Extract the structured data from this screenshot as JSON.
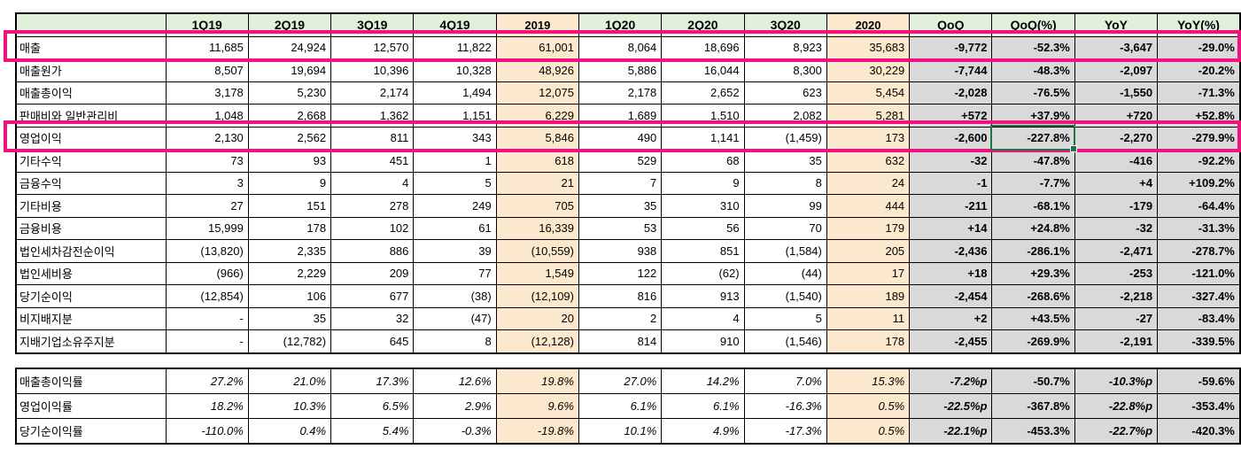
{
  "colors": {
    "header_green": "#e2efda",
    "fy_tan": "#fce8cc",
    "delta_gray": "#d9d9d9",
    "negative_blue": "#1111ee",
    "positive_red": "#fa0000",
    "highlight_magenta": "#f0137f",
    "selection_green": "#217346",
    "grid_black": "#000000"
  },
  "columns": [
    "",
    "1Q19",
    "2Q19",
    "3Q19",
    "4Q19",
    "2019",
    "1Q20",
    "2Q20",
    "3Q20",
    "2020",
    "QoQ",
    "QoQ(%)",
    "YoY",
    "YoY(%)"
  ],
  "income_rows": [
    {
      "label": "매출",
      "values": [
        "11,685",
        "24,924",
        "12,570",
        "11,822",
        "61,001",
        "8,064",
        "18,696",
        "8,923",
        "35,683",
        "-9,772",
        "-52.3%",
        "-3,647",
        "-29.0%"
      ]
    },
    {
      "label": "매출원가",
      "values": [
        "8,507",
        "19,694",
        "10,396",
        "10,328",
        "48,926",
        "5,886",
        "16,044",
        "8,300",
        "30,229",
        "-7,744",
        "-48.3%",
        "-2,097",
        "-20.2%"
      ]
    },
    {
      "label": "매출총이익",
      "values": [
        "3,178",
        "5,230",
        "2,174",
        "1,494",
        "12,075",
        "2,178",
        "2,652",
        "623",
        "5,454",
        "-2,028",
        "-76.5%",
        "-1,550",
        "-71.3%"
      ]
    },
    {
      "label": "판매비와 일반관리비",
      "values": [
        "1,048",
        "2,668",
        "1,362",
        "1,151",
        "6,229",
        "1,689",
        "1,510",
        "2,082",
        "5,281",
        "+572",
        "+37.9%",
        "+720",
        "+52.8%"
      ]
    },
    {
      "label": "영업이익",
      "values": [
        "2,130",
        "2,562",
        "811",
        "343",
        "5,846",
        "490",
        "1,141",
        "(1,459)",
        "173",
        "-2,600",
        "-227.8%",
        "-2,270",
        "-279.9%"
      ]
    },
    {
      "label": "기타수익",
      "values": [
        "73",
        "93",
        "451",
        "1",
        "618",
        "529",
        "68",
        "35",
        "632",
        "-32",
        "-47.8%",
        "-416",
        "-92.2%"
      ]
    },
    {
      "label": "금융수익",
      "values": [
        "3",
        "9",
        "4",
        "5",
        "21",
        "7",
        "9",
        "8",
        "24",
        "-1",
        "-7.7%",
        "+4",
        "+109.2%"
      ]
    },
    {
      "label": "기타비용",
      "values": [
        "27",
        "151",
        "278",
        "249",
        "705",
        "35",
        "310",
        "99",
        "444",
        "-211",
        "-68.1%",
        "-179",
        "-64.4%"
      ]
    },
    {
      "label": "금융비용",
      "values": [
        "15,999",
        "178",
        "102",
        "61",
        "16,339",
        "53",
        "56",
        "70",
        "179",
        "+14",
        "+24.8%",
        "-32",
        "-31.3%"
      ]
    },
    {
      "label": "법인세차감전순이익",
      "values": [
        "(13,820)",
        "2,335",
        "886",
        "39",
        "(10,559)",
        "938",
        "851",
        "(1,584)",
        "205",
        "-2,436",
        "-286.1%",
        "-2,471",
        "-278.7%"
      ]
    },
    {
      "label": "법인세비용",
      "values": [
        "(966)",
        "2,229",
        "209",
        "77",
        "1,549",
        "122",
        "(62)",
        "(44)",
        "17",
        "+18",
        "+29.3%",
        "-253",
        "-121.0%"
      ]
    },
    {
      "label": "당기순이익",
      "values": [
        "(12,854)",
        "106",
        "677",
        "(38)",
        "(12,109)",
        "816",
        "913",
        "(1,540)",
        "189",
        "-2,454",
        "-268.6%",
        "-2,218",
        "-327.4%"
      ]
    },
    {
      "label": "비지배지분",
      "values": [
        "-",
        "35",
        "32",
        "(47)",
        "20",
        "2",
        "4",
        "5",
        "11",
        "+2",
        "+43.5%",
        "-27",
        "-83.4%"
      ]
    },
    {
      "label": "지배기업소유주지분",
      "values": [
        "-",
        "(12,782)",
        "645",
        "8",
        "(12,128)",
        "814",
        "910",
        "(1,546)",
        "178",
        "-2,455",
        "-269.9%",
        "-2,191",
        "-339.5%"
      ]
    }
  ],
  "ratio_rows": [
    {
      "label": "매출총이익률",
      "values": [
        "27.2%",
        "21.0%",
        "17.3%",
        "12.6%",
        "19.8%",
        "27.0%",
        "14.2%",
        "7.0%",
        "15.3%",
        "-7.2%p",
        "-50.7%",
        "-10.3%p",
        "-59.6%"
      ]
    },
    {
      "label": "영업이익률",
      "values": [
        "18.2%",
        "10.3%",
        "6.5%",
        "2.9%",
        "9.6%",
        "6.1%",
        "6.1%",
        "-16.3%",
        "0.5%",
        "-22.5%p",
        "-367.8%",
        "-22.8%p",
        "-353.4%"
      ]
    },
    {
      "label": "당기순이익률",
      "values": [
        "-110.0%",
        "0.4%",
        "5.4%",
        "-0.3%",
        "-19.8%",
        "10.1%",
        "4.9%",
        "-17.3%",
        "0.5%",
        "-22.1%p",
        "-453.3%",
        "-22.7%p",
        "-420.3%"
      ]
    }
  ],
  "highlighted_rows": [
    "매출",
    "영업이익"
  ],
  "selection": {
    "row_label": "영업이익",
    "column": "QoQ(%)",
    "value": "-227.8%"
  }
}
